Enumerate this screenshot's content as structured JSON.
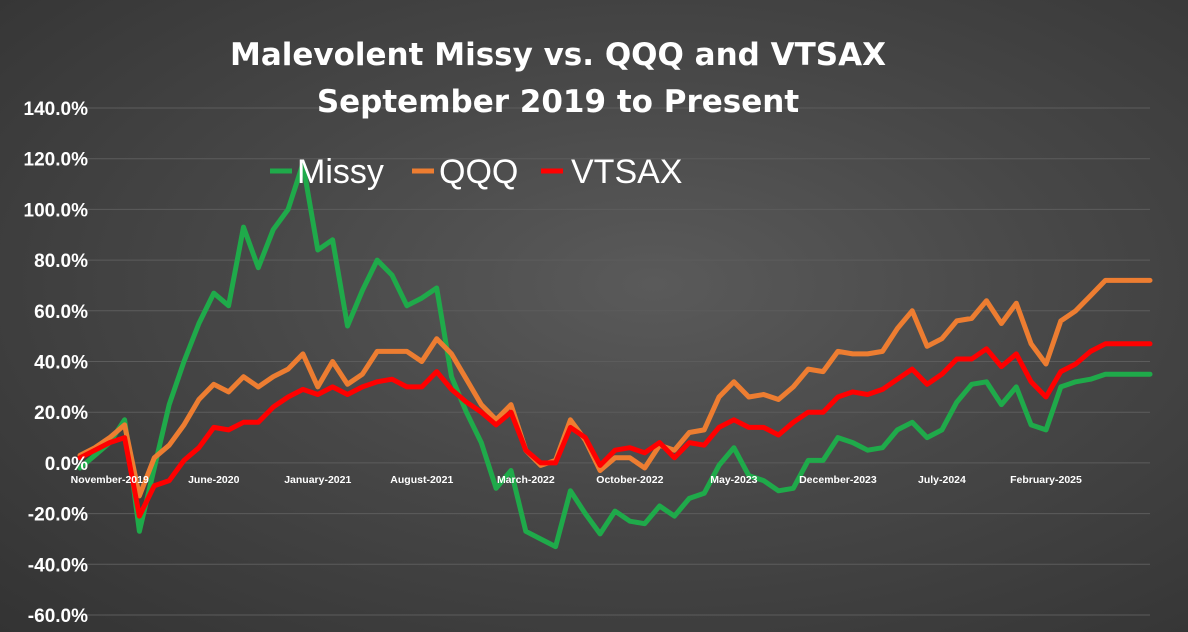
{
  "chart_data": {
    "type": "line",
    "title": "Malevolent Missy vs. QQQ and VTSAX",
    "subtitle": "September 2019 to Present",
    "xlabel": "",
    "ylabel": "",
    "ylim": [
      -60,
      140
    ],
    "y_ticks": [
      {
        "value": 140,
        "label": "140.0%"
      },
      {
        "value": 120,
        "label": "120.0%"
      },
      {
        "value": 100,
        "label": "100.0%"
      },
      {
        "value": 80,
        "label": "80.0%"
      },
      {
        "value": 60,
        "label": "60.0%"
      },
      {
        "value": 40,
        "label": "40.0%"
      },
      {
        "value": 20,
        "label": "20.0%"
      },
      {
        "value": 0,
        "label": "0.0%"
      },
      {
        "value": -20,
        "label": "-20.0%"
      },
      {
        "value": -40,
        "label": "-40.0%"
      },
      {
        "value": -60,
        "label": "-60.0%"
      }
    ],
    "x_start": "2019-09",
    "x_end": "2025-09",
    "x_ticks": [
      {
        "date": "2019-11",
        "label": "November-2019"
      },
      {
        "date": "2020-06",
        "label": "June-2020"
      },
      {
        "date": "2021-01",
        "label": "January-2021"
      },
      {
        "date": "2021-08",
        "label": "August-2021"
      },
      {
        "date": "2022-03",
        "label": "March-2022"
      },
      {
        "date": "2022-10",
        "label": "October-2022"
      },
      {
        "date": "2023-05",
        "label": "May-2023"
      },
      {
        "date": "2023-12",
        "label": "December-2023"
      },
      {
        "date": "2024-07",
        "label": "July-2024"
      },
      {
        "date": "2025-02",
        "label": "February-2025"
      }
    ],
    "grid": true,
    "legend_position": "top",
    "series": [
      {
        "name": "Missy",
        "color": "#1faa4a",
        "x": [
          "2019-09",
          "2019-10",
          "2019-11",
          "2019-12",
          "2020-01",
          "2020-02",
          "2020-03",
          "2020-04",
          "2020-05",
          "2020-06",
          "2020-07",
          "2020-08",
          "2020-09",
          "2020-10",
          "2020-11",
          "2020-12",
          "2021-01",
          "2021-02",
          "2021-03",
          "2021-04",
          "2021-05",
          "2021-06",
          "2021-07",
          "2021-08",
          "2021-09",
          "2021-10",
          "2021-11",
          "2021-12",
          "2022-01",
          "2022-02",
          "2022-03",
          "2022-04",
          "2022-05",
          "2022-06",
          "2022-07",
          "2022-08",
          "2022-09",
          "2022-10",
          "2022-11",
          "2022-12",
          "2023-01",
          "2023-02",
          "2023-03",
          "2023-04",
          "2023-05",
          "2023-06",
          "2023-07",
          "2023-08",
          "2023-09",
          "2023-10",
          "2023-11",
          "2023-12",
          "2024-01",
          "2024-02",
          "2024-03",
          "2024-04",
          "2024-05",
          "2024-06",
          "2024-07",
          "2024-08",
          "2024-09",
          "2024-10",
          "2024-11",
          "2024-12",
          "2025-01",
          "2025-02",
          "2025-03",
          "2025-04",
          "2025-05",
          "2025-06",
          "2025-07",
          "2025-08",
          "2025-09"
        ],
        "values": [
          -2,
          3,
          8,
          17,
          -27,
          -2,
          23,
          40,
          55,
          67,
          62,
          93,
          77,
          92,
          100,
          118,
          84,
          88,
          54,
          68,
          80,
          74,
          62,
          65,
          69,
          34,
          20,
          8,
          -10,
          -3,
          -27,
          -30,
          -33,
          -11,
          -20,
          -28,
          -19,
          -23,
          -24,
          -17,
          -21,
          -14,
          -12,
          -1,
          6,
          -5,
          -7,
          -11,
          -10,
          1,
          1,
          10,
          8,
          5,
          6,
          13,
          16,
          10,
          13,
          24,
          31,
          32,
          23,
          30,
          15,
          13,
          30,
          32,
          33,
          35,
          35,
          35,
          35
        ]
      },
      {
        "name": "QQQ",
        "color": "#ed7d31",
        "x": [
          "2019-09",
          "2019-10",
          "2019-11",
          "2019-12",
          "2020-01",
          "2020-02",
          "2020-03",
          "2020-04",
          "2020-05",
          "2020-06",
          "2020-07",
          "2020-08",
          "2020-09",
          "2020-10",
          "2020-11",
          "2020-12",
          "2021-01",
          "2021-02",
          "2021-03",
          "2021-04",
          "2021-05",
          "2021-06",
          "2021-07",
          "2021-08",
          "2021-09",
          "2021-10",
          "2021-11",
          "2021-12",
          "2022-01",
          "2022-02",
          "2022-03",
          "2022-04",
          "2022-05",
          "2022-06",
          "2022-07",
          "2022-08",
          "2022-09",
          "2022-10",
          "2022-11",
          "2022-12",
          "2023-01",
          "2023-02",
          "2023-03",
          "2023-04",
          "2023-05",
          "2023-06",
          "2023-07",
          "2023-08",
          "2023-09",
          "2023-10",
          "2023-11",
          "2023-12",
          "2024-01",
          "2024-02",
          "2024-03",
          "2024-04",
          "2024-05",
          "2024-06",
          "2024-07",
          "2024-08",
          "2024-09",
          "2024-10",
          "2024-11",
          "2024-12",
          "2025-01",
          "2025-02",
          "2025-03",
          "2025-04",
          "2025-05",
          "2025-06",
          "2025-07",
          "2025-08",
          "2025-09"
        ],
        "values": [
          3,
          6,
          10,
          15,
          -13,
          2,
          7,
          15,
          25,
          31,
          28,
          34,
          30,
          34,
          37,
          43,
          30,
          40,
          31,
          35,
          44,
          44,
          44,
          40,
          49,
          43,
          33,
          23,
          17,
          23,
          5,
          -1,
          1,
          17,
          9,
          -3,
          2,
          2,
          -2,
          7,
          5,
          12,
          13,
          26,
          32,
          26,
          27,
          25,
          30,
          37,
          36,
          44,
          43,
          43,
          44,
          53,
          60,
          46,
          49,
          56,
          57,
          64,
          55,
          63,
          47,
          39,
          56,
          60,
          66,
          72,
          72,
          72,
          72
        ]
      },
      {
        "name": "VTSAX",
        "color": "#ff0000",
        "x": [
          "2019-09",
          "2019-10",
          "2019-11",
          "2019-12",
          "2020-01",
          "2020-02",
          "2020-03",
          "2020-04",
          "2020-05",
          "2020-06",
          "2020-07",
          "2020-08",
          "2020-09",
          "2020-10",
          "2020-11",
          "2020-12",
          "2021-01",
          "2021-02",
          "2021-03",
          "2021-04",
          "2021-05",
          "2021-06",
          "2021-07",
          "2021-08",
          "2021-09",
          "2021-10",
          "2021-11",
          "2021-12",
          "2022-01",
          "2022-02",
          "2022-03",
          "2022-04",
          "2022-05",
          "2022-06",
          "2022-07",
          "2022-08",
          "2022-09",
          "2022-10",
          "2022-11",
          "2022-12",
          "2023-01",
          "2023-02",
          "2023-03",
          "2023-04",
          "2023-05",
          "2023-06",
          "2023-07",
          "2023-08",
          "2023-09",
          "2023-10",
          "2023-11",
          "2023-12",
          "2024-01",
          "2024-02",
          "2024-03",
          "2024-04",
          "2024-05",
          "2024-06",
          "2024-07",
          "2024-08",
          "2024-09",
          "2024-10",
          "2024-11",
          "2024-12",
          "2025-01",
          "2025-02",
          "2025-03",
          "2025-04",
          "2025-05",
          "2025-06",
          "2025-07",
          "2025-08",
          "2025-09"
        ],
        "values": [
          2,
          5,
          8,
          10,
          -21,
          -9,
          -7,
          1,
          6,
          14,
          13,
          16,
          16,
          22,
          26,
          29,
          27,
          30,
          27,
          30,
          32,
          33,
          30,
          30,
          36,
          29,
          24,
          20,
          15,
          20,
          5,
          0,
          0,
          14,
          10,
          -1,
          5,
          6,
          4,
          8,
          2,
          8,
          7,
          14,
          17,
          14,
          14,
          11,
          16,
          20,
          20,
          26,
          28,
          27,
          29,
          33,
          37,
          31,
          35,
          41,
          41,
          45,
          38,
          43,
          32,
          26,
          36,
          39,
          44,
          47,
          47,
          47,
          47
        ]
      }
    ]
  }
}
